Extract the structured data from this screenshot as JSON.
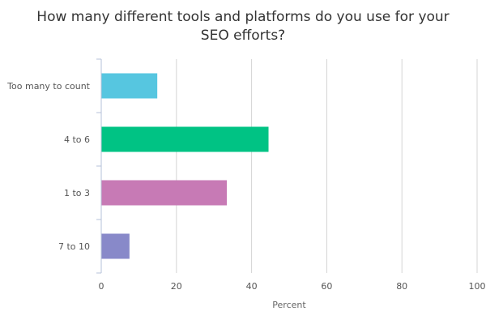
{
  "chart_data": {
    "type": "bar",
    "orientation": "horizontal",
    "title_lines": [
      "How many different tools and platforms do you use for your",
      "SEO efforts?"
    ],
    "categories": [
      "Too many to count",
      "4 to 6",
      "1 to 3",
      "7 to 10"
    ],
    "values": [
      14.8,
      44.4,
      33.3,
      7.4
    ],
    "colors": [
      "#56c6e0",
      "#00c384",
      "#c77ab5",
      "#8889c9"
    ],
    "xlabel": "Percent",
    "ylabel": "",
    "xlim": [
      0,
      100
    ],
    "xticks": [
      "0",
      "20",
      "40",
      "60",
      "80",
      "100"
    ],
    "grid": true,
    "legend": "none"
  }
}
